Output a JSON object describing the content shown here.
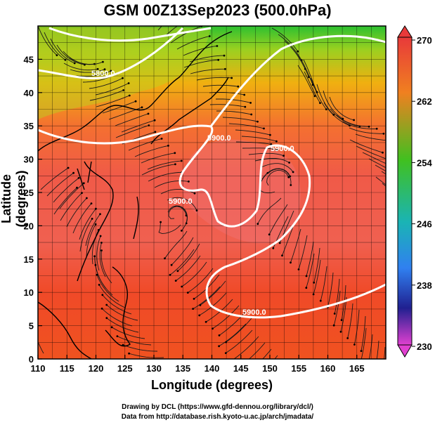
{
  "title": "GSM 00Z13Sep2023 (500.0hPa)",
  "xlabel": "Longitude (degrees)",
  "ylabel": "Latitude (degrees)",
  "credit_line1": "Drawing by DCL (https://www.gfd-dennou.org/library/dcl/)",
  "credit_line2": "Data from http://database.rish.kyoto-u.ac.jp/arch/jmadata/",
  "x_ticks": [
    "110",
    "115",
    "120",
    "125",
    "130",
    "135",
    "140",
    "145",
    "150",
    "155",
    "160",
    "165"
  ],
  "y_ticks": [
    "0",
    "5",
    "10",
    "15",
    "20",
    "25",
    "30",
    "35",
    "40",
    "45"
  ],
  "colorbar": {
    "ticks": [
      "270",
      "262",
      "254",
      "246",
      "238",
      "230"
    ],
    "colors": [
      "#e83a3a",
      "#f08020",
      "#40c020",
      "#1ab4b4",
      "#3080f0",
      "#202090",
      "#e040d0"
    ]
  },
  "contour_labels": [
    "5800.0",
    "5900.0",
    "5900.0",
    "5900.0",
    "5900.0"
  ],
  "map": {
    "lon_range": [
      110,
      170
    ],
    "lat_range": [
      0,
      50
    ],
    "field": "temperature (K) with streamlines and geopotential height contours"
  }
}
